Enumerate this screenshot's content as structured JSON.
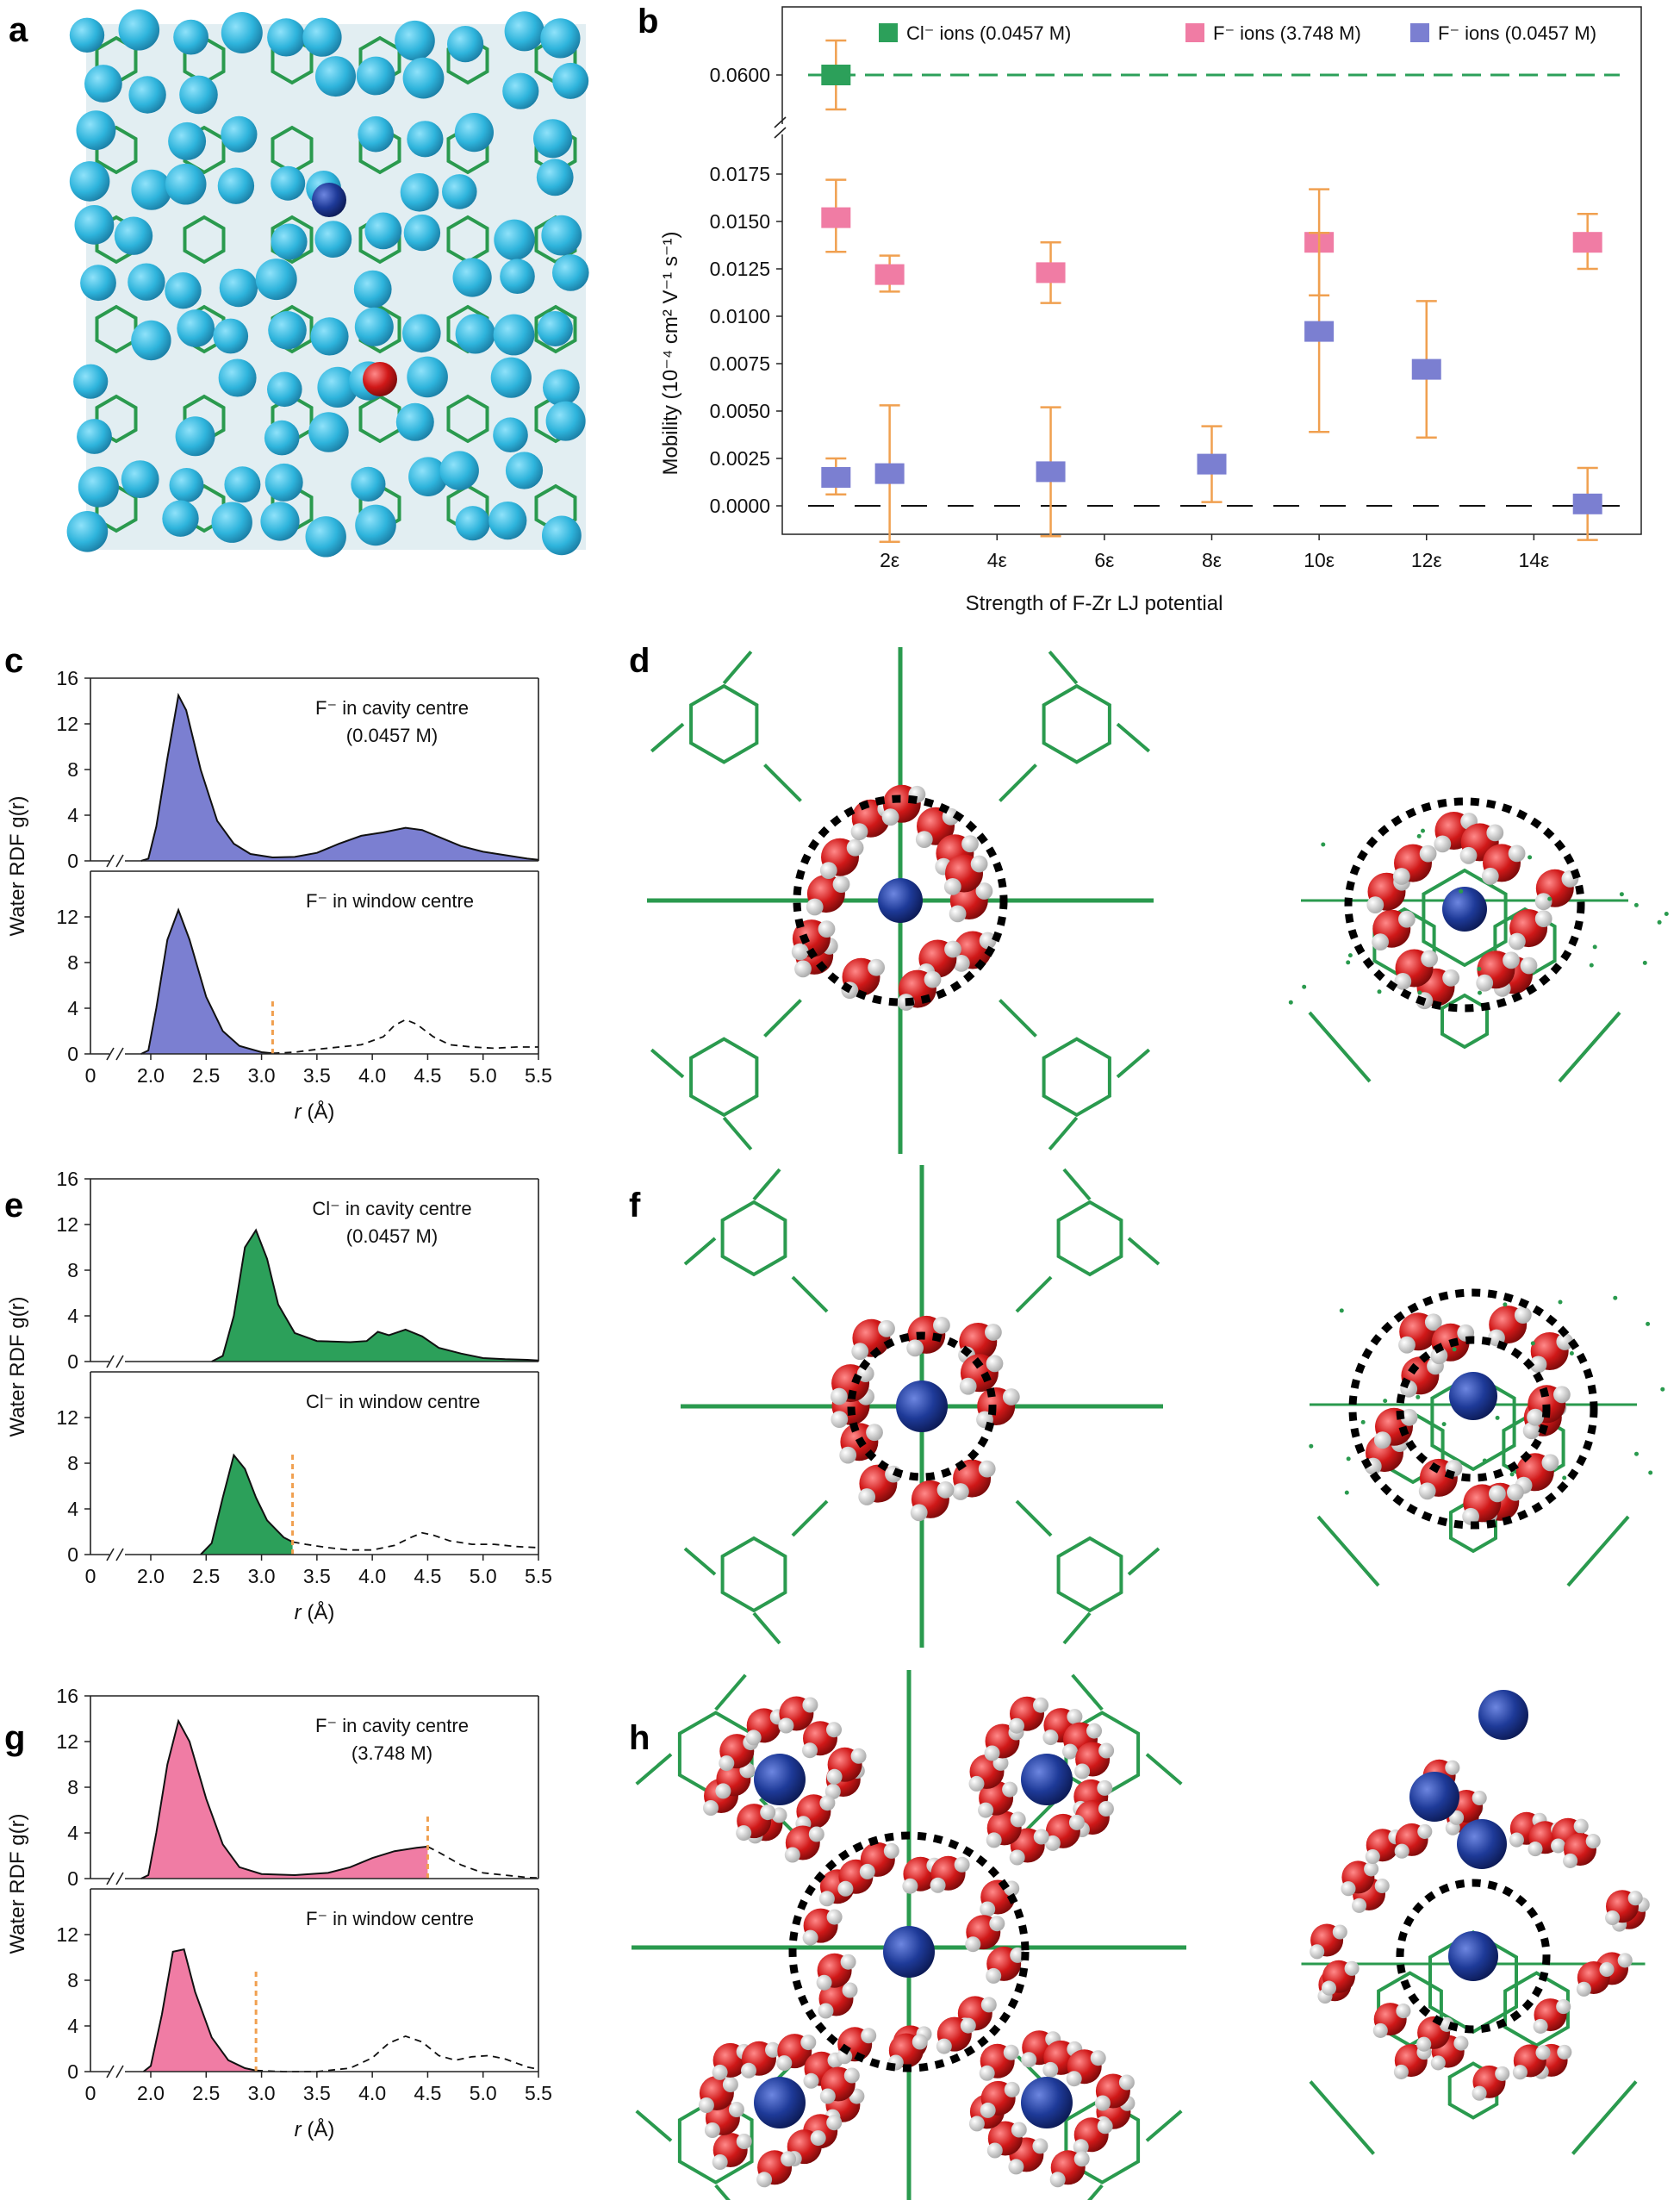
{
  "panel_labels": {
    "a": "a",
    "b": "b",
    "c": "c",
    "d": "d",
    "e": "e",
    "f": "f",
    "g": "g",
    "h": "h"
  },
  "colors": {
    "green": "#2ca05a",
    "pink": "#f07ca4",
    "purple": "#7b7fd1",
    "orange": "#f0a050",
    "water_o": "#d01818",
    "water_h": "#e8e8e8",
    "anion": "#1e3a98",
    "sphere": "#2eb4dc",
    "framework": "#2a9a4e"
  },
  "chart_data": [
    {
      "panel": "b",
      "type": "scatter",
      "xlabel": "Strength of F-Zr LJ potential",
      "ylabel": "Mobility (10⁻⁴ cm² V⁻¹ s⁻¹)",
      "x_ticks": [
        "2ε",
        "4ε",
        "6ε",
        "8ε",
        "10ε",
        "12ε",
        "14ε"
      ],
      "x_tick_values": [
        2,
        4,
        6,
        8,
        10,
        12,
        14
      ],
      "xlim": [
        0,
        16
      ],
      "ylim_lower": [
        -0.0015,
        0.0195
      ],
      "y_ticks_lower": [
        "0.0000",
        "0.0025",
        "0.0050",
        "0.0075",
        "0.0100",
        "0.0125",
        "0.0150",
        "0.0175"
      ],
      "y_tick_values_lower": [
        0,
        0.0025,
        0.005,
        0.0075,
        0.01,
        0.0125,
        0.015,
        0.0175
      ],
      "y_tick_upper": "0.0600",
      "y_tick_value_upper": 0.06,
      "legend": [
        "Cl⁻ ions (0.0457 M)",
        "F⁻ ions (3.748 M)",
        "F⁻ ions (0.0457 M)"
      ],
      "series": [
        {
          "name": "Cl⁻ ions (0.0457 M)",
          "color": "#2ca05a",
          "points": [
            {
              "x": 1,
              "y": 0.06,
              "lo": 0.0578,
              "hi": 0.0622
            }
          ]
        },
        {
          "name": "F⁻ ions (3.748 M)",
          "color": "#f07ca4",
          "points": [
            {
              "x": 1,
              "y": 0.0152,
              "lo": 0.0134,
              "hi": 0.0172
            },
            {
              "x": 2,
              "y": 0.0122,
              "lo": 0.0113,
              "hi": 0.0132
            },
            {
              "x": 5,
              "y": 0.0123,
              "lo": 0.0107,
              "hi": 0.0139
            },
            {
              "x": 10,
              "y": 0.0139,
              "lo": 0.0111,
              "hi": 0.0167
            },
            {
              "x": 15,
              "y": 0.0139,
              "lo": 0.0125,
              "hi": 0.0154
            }
          ]
        },
        {
          "name": "F⁻ ions (0.0457 M)",
          "color": "#7b7fd1",
          "points": [
            {
              "x": 1,
              "y": 0.0015,
              "lo": 0.0006,
              "hi": 0.0025
            },
            {
              "x": 2,
              "y": 0.0017,
              "lo": -0.0019,
              "hi": 0.0053
            },
            {
              "x": 5,
              "y": 0.0018,
              "lo": -0.0016,
              "hi": 0.0052
            },
            {
              "x": 8,
              "y": 0.0022,
              "lo": 0.0002,
              "hi": 0.0042
            },
            {
              "x": 10,
              "y": 0.0092,
              "lo": 0.0039,
              "hi": 0.0144
            },
            {
              "x": 12,
              "y": 0.0072,
              "lo": 0.0036,
              "hi": 0.0108
            },
            {
              "x": 15,
              "y": 0.0001,
              "lo": -0.0018,
              "hi": 0.002
            }
          ]
        }
      ]
    },
    {
      "panel": "c",
      "type": "area",
      "color": "#7b7fd1",
      "ylabel": "Water RDF g(r)",
      "xlabel_sym": "r",
      "xlabel_unit": " (Å)",
      "x_ticks": [
        "0",
        "2.0",
        "2.5",
        "3.0",
        "3.5",
        "4.0",
        "4.5",
        "5.0",
        "5.5"
      ],
      "x_tick_values": [
        2.0,
        2.5,
        3.0,
        3.5,
        4.0,
        4.5,
        5.0,
        5.5
      ],
      "y_ticks_top": [
        "0",
        "4",
        "8",
        "12",
        "16"
      ],
      "y_ticks_bottom": [
        "0",
        "4",
        "8",
        "12"
      ],
      "xlim": [
        1.5,
        5.5
      ],
      "ylim": [
        0,
        16
      ],
      "top": {
        "annotation": [
          "F⁻ in cavity centre",
          "(0.0457 M)"
        ],
        "fill_to": 5.5,
        "cutoff": null,
        "curve": [
          [
            1.8,
            0
          ],
          [
            1.95,
            0.2
          ],
          [
            2.05,
            3
          ],
          [
            2.15,
            9
          ],
          [
            2.25,
            14.5
          ],
          [
            2.32,
            13.2
          ],
          [
            2.45,
            8
          ],
          [
            2.6,
            3.5
          ],
          [
            2.75,
            1.5
          ],
          [
            2.9,
            0.6
          ],
          [
            3.1,
            0.3
          ],
          [
            3.3,
            0.35
          ],
          [
            3.5,
            0.7
          ],
          [
            3.7,
            1.5
          ],
          [
            3.9,
            2.2
          ],
          [
            4.1,
            2.5
          ],
          [
            4.3,
            2.9
          ],
          [
            4.45,
            2.7
          ],
          [
            4.6,
            2.1
          ],
          [
            4.8,
            1.3
          ],
          [
            5.0,
            0.8
          ],
          [
            5.2,
            0.5
          ],
          [
            5.4,
            0.2
          ],
          [
            5.5,
            0.1
          ]
        ]
      },
      "bottom": {
        "annotation": [
          "F⁻ in window centre"
        ],
        "fill_to": 3.1,
        "cutoff": 3.1,
        "cutoff_h": 4.8,
        "curve": [
          [
            1.8,
            0
          ],
          [
            1.95,
            0.3
          ],
          [
            2.05,
            4
          ],
          [
            2.15,
            10
          ],
          [
            2.25,
            12.6
          ],
          [
            2.35,
            10
          ],
          [
            2.5,
            5
          ],
          [
            2.65,
            2
          ],
          [
            2.8,
            0.7
          ],
          [
            3.0,
            0.15
          ],
          [
            3.1,
            0.05
          ],
          [
            3.3,
            0.15
          ],
          [
            3.5,
            0.4
          ],
          [
            3.7,
            0.6
          ],
          [
            3.9,
            0.8
          ],
          [
            4.1,
            1.5
          ],
          [
            4.2,
            2.5
          ],
          [
            4.3,
            3.0
          ],
          [
            4.4,
            2.6
          ],
          [
            4.55,
            1.5
          ],
          [
            4.7,
            0.8
          ],
          [
            4.9,
            0.6
          ],
          [
            5.1,
            0.5
          ],
          [
            5.3,
            0.6
          ],
          [
            5.5,
            0.6
          ]
        ]
      }
    },
    {
      "panel": "e",
      "type": "area",
      "color": "#2ca05a",
      "ylabel": "Water RDF g(r)",
      "xlabel_sym": "r",
      "xlabel_unit": " (Å)",
      "x_ticks": [
        "0",
        "2.0",
        "2.5",
        "3.0",
        "3.5",
        "4.0",
        "4.5",
        "5.0",
        "5.5"
      ],
      "x_tick_values": [
        2.0,
        2.5,
        3.0,
        3.5,
        4.0,
        4.5,
        5.0,
        5.5
      ],
      "y_ticks_top": [
        "0",
        "4",
        "8",
        "12",
        "16"
      ],
      "y_ticks_bottom": [
        "0",
        "4",
        "8",
        "12"
      ],
      "xlim": [
        1.5,
        5.5
      ],
      "ylim": [
        0,
        16
      ],
      "top": {
        "annotation": [
          "Cl⁻ in cavity centre",
          "(0.0457 M)"
        ],
        "fill_to": 5.5,
        "cutoff": null,
        "curve": [
          [
            2.55,
            0
          ],
          [
            2.65,
            0.5
          ],
          [
            2.75,
            4
          ],
          [
            2.85,
            10
          ],
          [
            2.95,
            11.5
          ],
          [
            3.05,
            9
          ],
          [
            3.15,
            5
          ],
          [
            3.3,
            2.5
          ],
          [
            3.5,
            1.8
          ],
          [
            3.8,
            1.7
          ],
          [
            3.95,
            1.8
          ],
          [
            4.05,
            2.6
          ],
          [
            4.15,
            2.3
          ],
          [
            4.3,
            2.8
          ],
          [
            4.45,
            2.2
          ],
          [
            4.6,
            1.2
          ],
          [
            4.8,
            0.7
          ],
          [
            5.0,
            0.3
          ],
          [
            5.2,
            0.2
          ],
          [
            5.4,
            0.15
          ],
          [
            5.5,
            0.1
          ]
        ]
      },
      "bottom": {
        "annotation": [
          "Cl⁻ in window centre"
        ],
        "fill_to": 3.28,
        "cutoff": 3.28,
        "cutoff_h": 9,
        "curve": [
          [
            2.45,
            0
          ],
          [
            2.55,
            1
          ],
          [
            2.65,
            5
          ],
          [
            2.75,
            8.7
          ],
          [
            2.85,
            7.5
          ],
          [
            2.95,
            5
          ],
          [
            3.05,
            3
          ],
          [
            3.2,
            1.5
          ],
          [
            3.28,
            1.1
          ],
          [
            3.4,
            0.9
          ],
          [
            3.6,
            0.6
          ],
          [
            3.8,
            0.4
          ],
          [
            4.0,
            0.4
          ],
          [
            4.2,
            0.8
          ],
          [
            4.35,
            1.5
          ],
          [
            4.45,
            1.9
          ],
          [
            4.55,
            1.7
          ],
          [
            4.7,
            1.2
          ],
          [
            4.9,
            0.9
          ],
          [
            5.1,
            0.9
          ],
          [
            5.3,
            0.7
          ],
          [
            5.5,
            0.6
          ]
        ]
      }
    },
    {
      "panel": "g",
      "type": "area",
      "color": "#f07ca4",
      "ylabel": "Water RDF g(r)",
      "xlabel_sym": "r",
      "xlabel_unit": " (Å)",
      "x_ticks": [
        "0",
        "2.0",
        "2.5",
        "3.0",
        "3.5",
        "4.0",
        "4.5",
        "5.0",
        "5.5"
      ],
      "x_tick_values": [
        2.0,
        2.5,
        3.0,
        3.5,
        4.0,
        4.5,
        5.0,
        5.5
      ],
      "y_ticks_top": [
        "0",
        "4",
        "8",
        "12",
        "16"
      ],
      "y_ticks_bottom": [
        "0",
        "4",
        "8",
        "12"
      ],
      "xlim": [
        1.5,
        5.5
      ],
      "ylim": [
        0,
        16
      ],
      "top": {
        "annotation": [
          "F⁻ in cavity centre",
          "(3.748 M)"
        ],
        "fill_to": 4.5,
        "cutoff": 4.5,
        "cutoff_h": 5.8,
        "curve": [
          [
            1.8,
            0
          ],
          [
            1.95,
            0.3
          ],
          [
            2.05,
            4
          ],
          [
            2.15,
            10
          ],
          [
            2.25,
            13.8
          ],
          [
            2.35,
            12
          ],
          [
            2.5,
            7
          ],
          [
            2.65,
            3
          ],
          [
            2.8,
            1
          ],
          [
            3.0,
            0.4
          ],
          [
            3.3,
            0.3
          ],
          [
            3.6,
            0.5
          ],
          [
            3.8,
            1
          ],
          [
            4.0,
            1.8
          ],
          [
            4.2,
            2.4
          ],
          [
            4.4,
            2.7
          ],
          [
            4.5,
            2.8
          ],
          [
            4.6,
            2.3
          ],
          [
            4.8,
            1.2
          ],
          [
            5.0,
            0.5
          ],
          [
            5.2,
            0.3
          ],
          [
            5.4,
            0.1
          ],
          [
            5.5,
            0.05
          ]
        ]
      },
      "bottom": {
        "annotation": [
          "F⁻ in window centre"
        ],
        "fill_to": 2.95,
        "cutoff": 2.95,
        "cutoff_h": 9,
        "curve": [
          [
            1.85,
            0
          ],
          [
            2.0,
            0.5
          ],
          [
            2.1,
            5
          ],
          [
            2.2,
            10.5
          ],
          [
            2.3,
            10.7
          ],
          [
            2.4,
            7
          ],
          [
            2.55,
            3
          ],
          [
            2.7,
            1
          ],
          [
            2.85,
            0.3
          ],
          [
            2.95,
            0.1
          ],
          [
            3.2,
            0
          ],
          [
            3.5,
            0
          ],
          [
            3.8,
            0.3
          ],
          [
            4.0,
            1.2
          ],
          [
            4.15,
            2.5
          ],
          [
            4.3,
            3.1
          ],
          [
            4.45,
            2.6
          ],
          [
            4.6,
            1.4
          ],
          [
            4.75,
            1.0
          ],
          [
            4.9,
            1.3
          ],
          [
            5.05,
            1.4
          ],
          [
            5.2,
            1.1
          ],
          [
            5.4,
            0.4
          ],
          [
            5.5,
            0.2
          ]
        ]
      }
    }
  ]
}
